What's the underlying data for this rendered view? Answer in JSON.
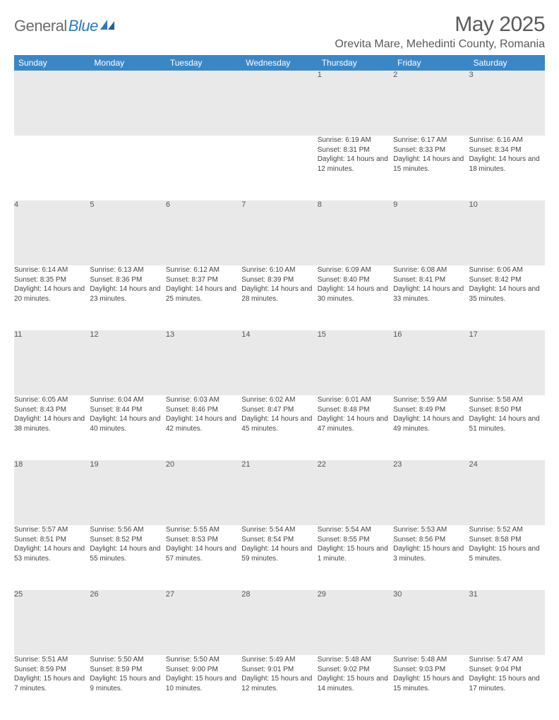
{
  "brand": {
    "general": "General",
    "blue": "Blue"
  },
  "title": "May 2025",
  "location": "Orevita Mare, Mehedinti County, Romania",
  "colors": {
    "header_bg": "#3a87c8",
    "header_fg": "#ffffff",
    "daynum_bg": "#e9e9e9",
    "border": "#3a87c8",
    "text": "#444444",
    "title_color": "#5a5a5a",
    "logo_gray": "#6b6b6b",
    "logo_blue": "#2b7bbf"
  },
  "weekdays": [
    "Sunday",
    "Monday",
    "Tuesday",
    "Wednesday",
    "Thursday",
    "Friday",
    "Saturday"
  ],
  "weeks": [
    [
      null,
      null,
      null,
      null,
      {
        "n": "1",
        "sr": "6:19 AM",
        "ss": "8:31 PM",
        "dl": "14 hours and 12 minutes."
      },
      {
        "n": "2",
        "sr": "6:17 AM",
        "ss": "8:33 PM",
        "dl": "14 hours and 15 minutes."
      },
      {
        "n": "3",
        "sr": "6:16 AM",
        "ss": "8:34 PM",
        "dl": "14 hours and 18 minutes."
      }
    ],
    [
      {
        "n": "4",
        "sr": "6:14 AM",
        "ss": "8:35 PM",
        "dl": "14 hours and 20 minutes."
      },
      {
        "n": "5",
        "sr": "6:13 AM",
        "ss": "8:36 PM",
        "dl": "14 hours and 23 minutes."
      },
      {
        "n": "6",
        "sr": "6:12 AM",
        "ss": "8:37 PM",
        "dl": "14 hours and 25 minutes."
      },
      {
        "n": "7",
        "sr": "6:10 AM",
        "ss": "8:39 PM",
        "dl": "14 hours and 28 minutes."
      },
      {
        "n": "8",
        "sr": "6:09 AM",
        "ss": "8:40 PM",
        "dl": "14 hours and 30 minutes."
      },
      {
        "n": "9",
        "sr": "6:08 AM",
        "ss": "8:41 PM",
        "dl": "14 hours and 33 minutes."
      },
      {
        "n": "10",
        "sr": "6:06 AM",
        "ss": "8:42 PM",
        "dl": "14 hours and 35 minutes."
      }
    ],
    [
      {
        "n": "11",
        "sr": "6:05 AM",
        "ss": "8:43 PM",
        "dl": "14 hours and 38 minutes."
      },
      {
        "n": "12",
        "sr": "6:04 AM",
        "ss": "8:44 PM",
        "dl": "14 hours and 40 minutes."
      },
      {
        "n": "13",
        "sr": "6:03 AM",
        "ss": "8:46 PM",
        "dl": "14 hours and 42 minutes."
      },
      {
        "n": "14",
        "sr": "6:02 AM",
        "ss": "8:47 PM",
        "dl": "14 hours and 45 minutes."
      },
      {
        "n": "15",
        "sr": "6:01 AM",
        "ss": "8:48 PM",
        "dl": "14 hours and 47 minutes."
      },
      {
        "n": "16",
        "sr": "5:59 AM",
        "ss": "8:49 PM",
        "dl": "14 hours and 49 minutes."
      },
      {
        "n": "17",
        "sr": "5:58 AM",
        "ss": "8:50 PM",
        "dl": "14 hours and 51 minutes."
      }
    ],
    [
      {
        "n": "18",
        "sr": "5:57 AM",
        "ss": "8:51 PM",
        "dl": "14 hours and 53 minutes."
      },
      {
        "n": "19",
        "sr": "5:56 AM",
        "ss": "8:52 PM",
        "dl": "14 hours and 55 minutes."
      },
      {
        "n": "20",
        "sr": "5:55 AM",
        "ss": "8:53 PM",
        "dl": "14 hours and 57 minutes."
      },
      {
        "n": "21",
        "sr": "5:54 AM",
        "ss": "8:54 PM",
        "dl": "14 hours and 59 minutes."
      },
      {
        "n": "22",
        "sr": "5:54 AM",
        "ss": "8:55 PM",
        "dl": "15 hours and 1 minute."
      },
      {
        "n": "23",
        "sr": "5:53 AM",
        "ss": "8:56 PM",
        "dl": "15 hours and 3 minutes."
      },
      {
        "n": "24",
        "sr": "5:52 AM",
        "ss": "8:58 PM",
        "dl": "15 hours and 5 minutes."
      }
    ],
    [
      {
        "n": "25",
        "sr": "5:51 AM",
        "ss": "8:59 PM",
        "dl": "15 hours and 7 minutes."
      },
      {
        "n": "26",
        "sr": "5:50 AM",
        "ss": "8:59 PM",
        "dl": "15 hours and 9 minutes."
      },
      {
        "n": "27",
        "sr": "5:50 AM",
        "ss": "9:00 PM",
        "dl": "15 hours and 10 minutes."
      },
      {
        "n": "28",
        "sr": "5:49 AM",
        "ss": "9:01 PM",
        "dl": "15 hours and 12 minutes."
      },
      {
        "n": "29",
        "sr": "5:48 AM",
        "ss": "9:02 PM",
        "dl": "15 hours and 14 minutes."
      },
      {
        "n": "30",
        "sr": "5:48 AM",
        "ss": "9:03 PM",
        "dl": "15 hours and 15 minutes."
      },
      {
        "n": "31",
        "sr": "5:47 AM",
        "ss": "9:04 PM",
        "dl": "15 hours and 17 minutes."
      }
    ]
  ],
  "labels": {
    "sunrise": "Sunrise:",
    "sunset": "Sunset:",
    "daylight": "Daylight:"
  }
}
